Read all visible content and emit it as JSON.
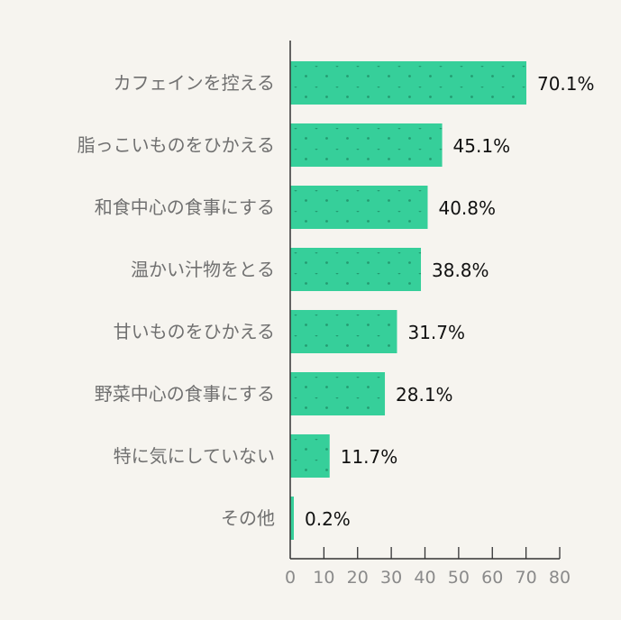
{
  "chart_data": {
    "type": "bar",
    "orientation": "horizontal",
    "categories": [
      "カフェインを控える",
      "脂っこいものをひかえる",
      "和食中心の食事にする",
      "温かい汁物をとる",
      "甘いものをひかえる",
      "野菜中心の食事にする",
      "特に気にしていない",
      "その他"
    ],
    "values": [
      70.1,
      45.1,
      40.8,
      38.8,
      31.7,
      28.1,
      11.7,
      0.2
    ],
    "value_labels": [
      "70.1%",
      "45.1%",
      "40.8%",
      "38.8%",
      "31.7%",
      "28.1%",
      "11.7%",
      "0.2%"
    ],
    "xlim": [
      0,
      80
    ],
    "xticks": [
      0,
      10,
      20,
      30,
      40,
      50,
      60,
      70,
      80
    ],
    "xtick_labels": [
      "0",
      "10",
      "20",
      "30",
      "40",
      "50",
      "60",
      "70",
      "80"
    ],
    "grid": false,
    "colors": {
      "bar": "#36cf9a",
      "dot": "#239a70"
    }
  }
}
